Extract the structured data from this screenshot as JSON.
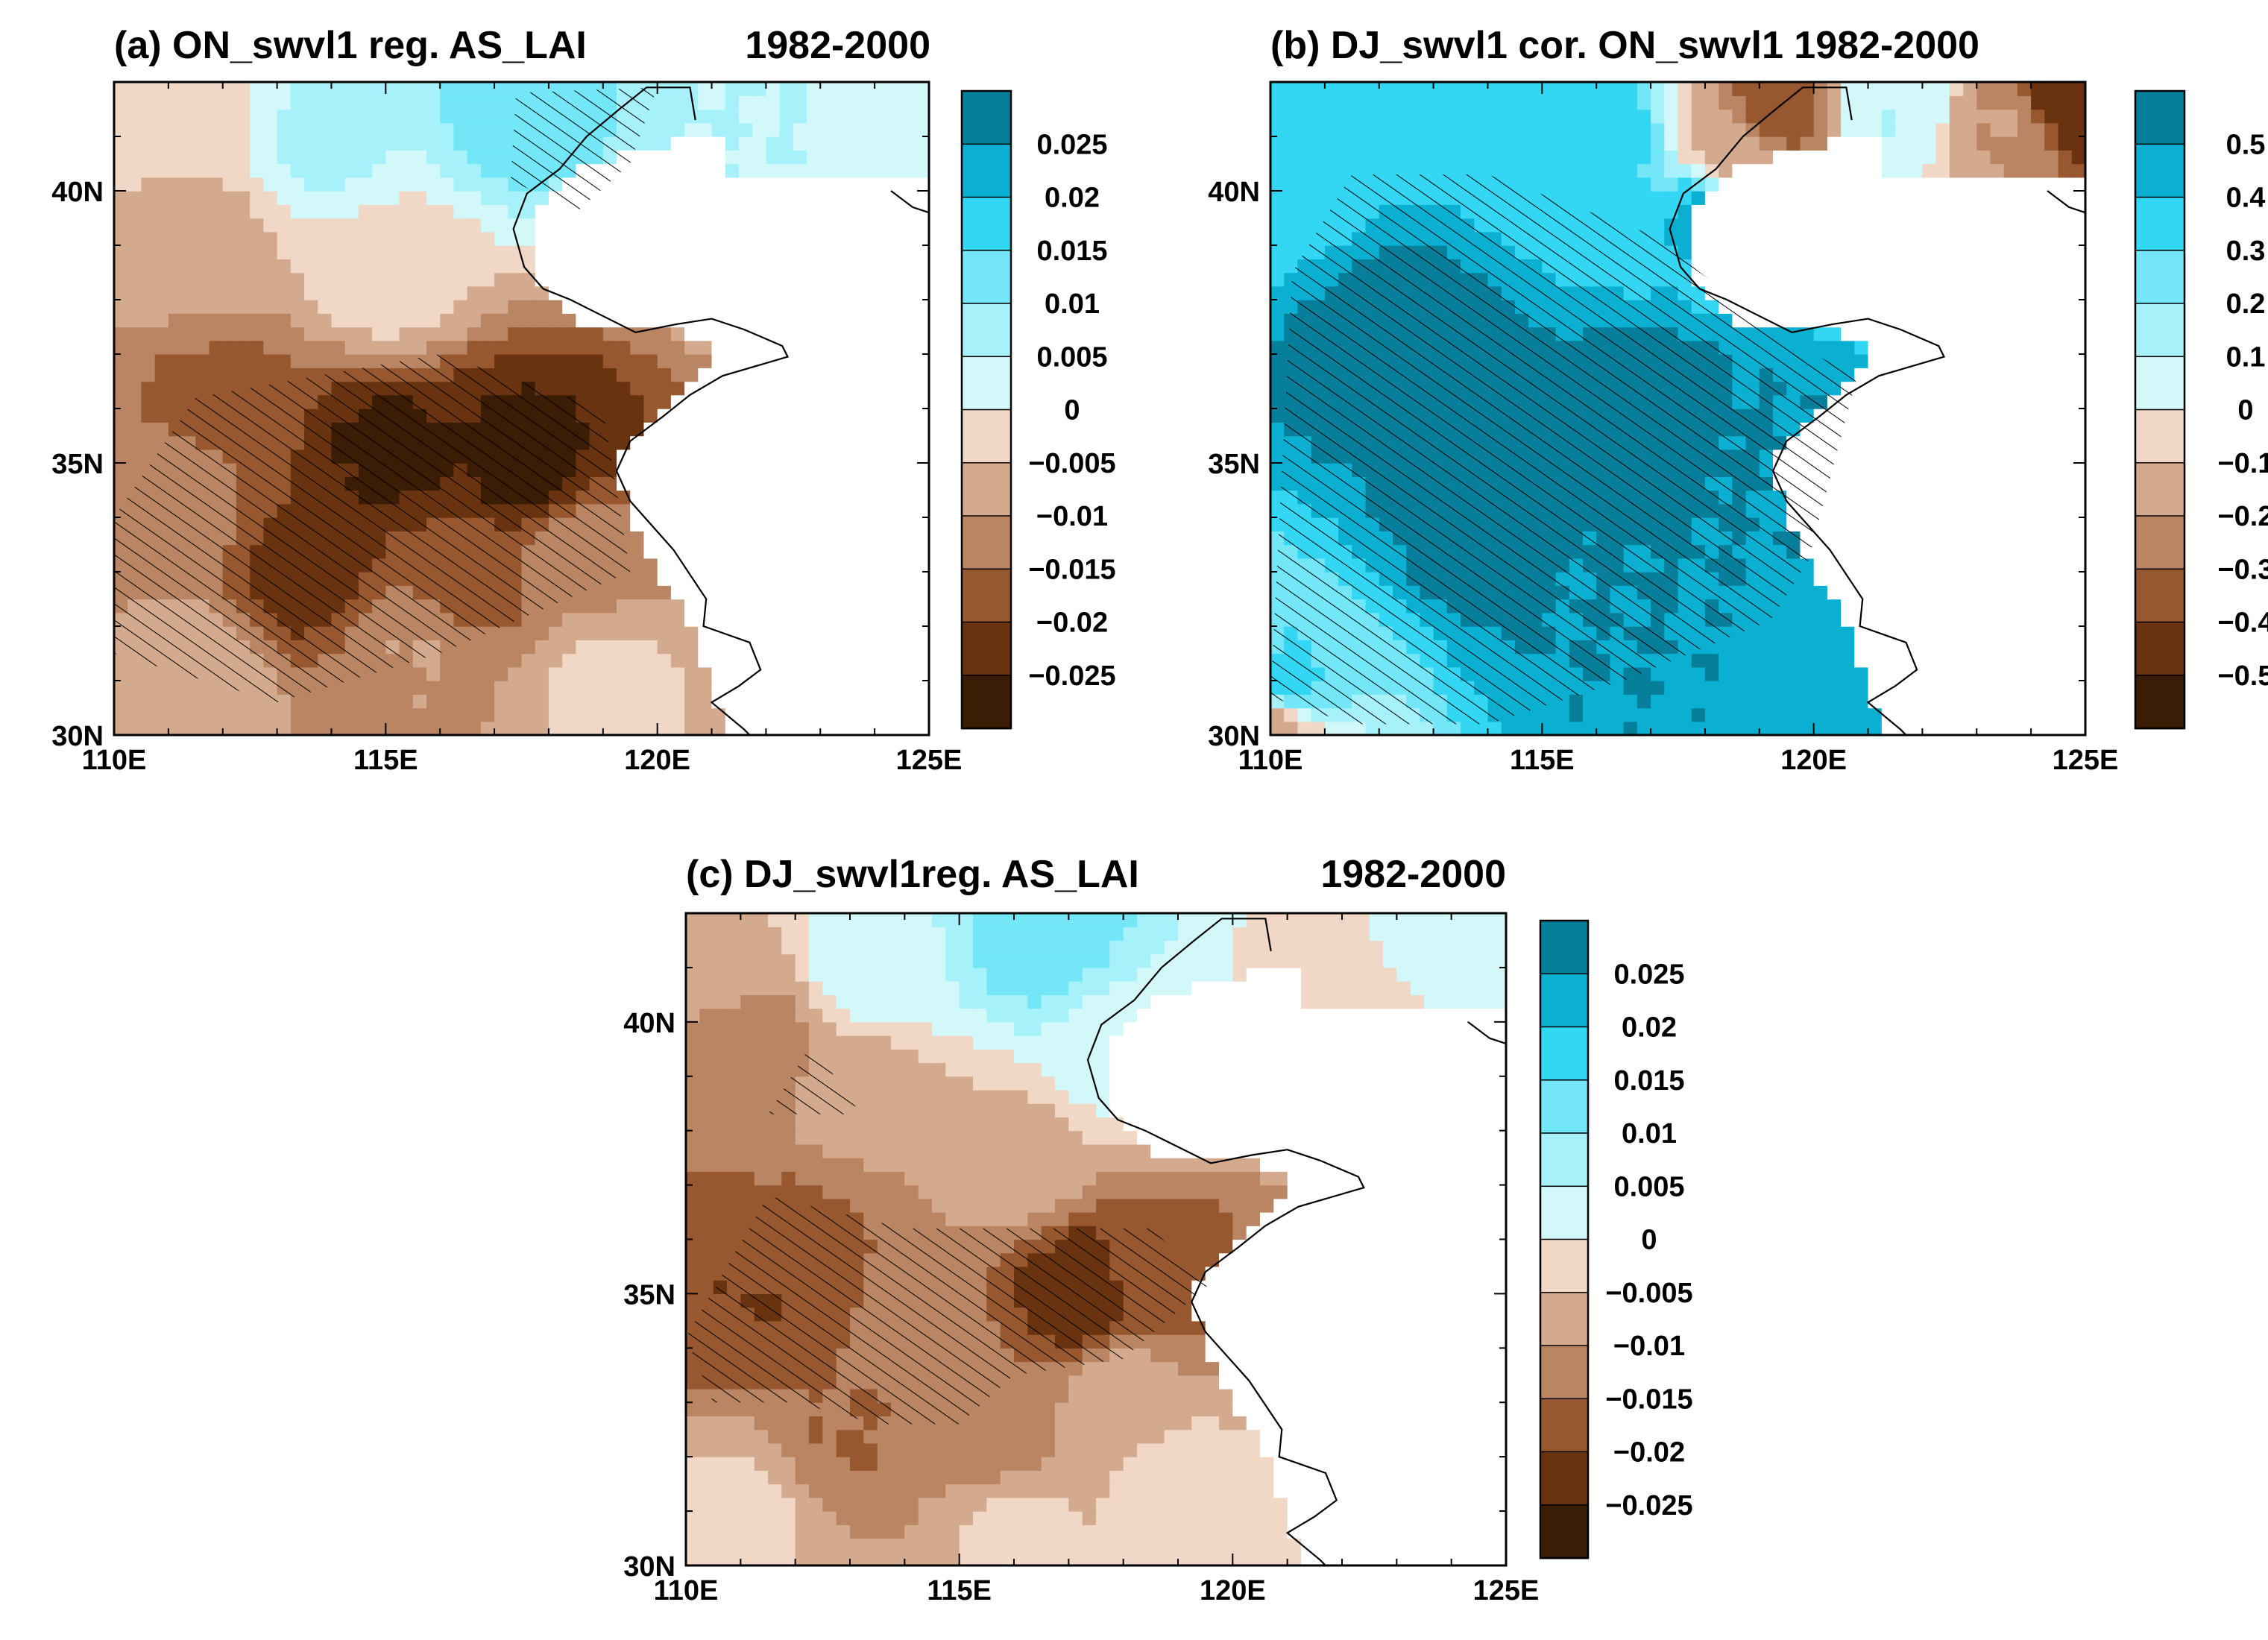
{
  "colors": {
    "brown": [
      "#3b1c05",
      "#6a3310",
      "#97582f",
      "#b98562",
      "#d4aa8f",
      "#f0d7c6"
    ],
    "blue": [
      "#d2f8fa",
      "#a7f2fa",
      "#73e7f8",
      "#33d6f3",
      "#0ab0d2",
      "#077e9a"
    ],
    "land": "#ffffff",
    "coast": "#000000",
    "hatch": "#000000"
  },
  "chart_data": [
    {
      "id": "a",
      "type": "heatmap",
      "title": "(a) ON_swvl1 reg. AS_LAI",
      "period": "1982-2000",
      "xlabel": "",
      "ylabel": "",
      "xlim": [
        110,
        125
      ],
      "ylim": [
        30,
        42
      ],
      "xticks": [
        110,
        115,
        120,
        125
      ],
      "xtick_labels": [
        "110E",
        "115E",
        "120E",
        "125E"
      ],
      "yticks": [
        30,
        35,
        40
      ],
      "ytick_labels": [
        "30N",
        "35N",
        "40N"
      ],
      "colorbar_levels": [
        "0.025",
        "0.02",
        "0.015",
        "0.01",
        "0.005",
        "0",
        "−0.005",
        "−0.01",
        "−0.015",
        "−0.02",
        "−0.025"
      ],
      "field": {
        "gradient": [
          0.0,
          -0.25,
          0.25
        ],
        "anchors": [
          {
            "lon": 117.5,
            "lat": 41.6,
            "val": 0.012
          },
          {
            "lon": 114.0,
            "lat": 41.0,
            "val": 0.006
          },
          {
            "lon": 121.5,
            "lat": 40.8,
            "val": 0.005
          },
          {
            "lon": 111.0,
            "lat": 41.5,
            "val": -0.003
          },
          {
            "lon": 111.5,
            "lat": 39.0,
            "val": -0.007
          },
          {
            "lon": 115.0,
            "lat": 38.5,
            "val": -0.003
          },
          {
            "lon": 112.0,
            "lat": 36.2,
            "val": -0.016
          },
          {
            "lon": 115.0,
            "lat": 35.2,
            "val": -0.026
          },
          {
            "lon": 117.5,
            "lat": 35.0,
            "val": -0.027
          },
          {
            "lon": 113.5,
            "lat": 33.0,
            "val": -0.022
          },
          {
            "lon": 116.5,
            "lat": 33.0,
            "val": -0.018
          },
          {
            "lon": 118.5,
            "lat": 33.2,
            "val": -0.012
          },
          {
            "lon": 111.0,
            "lat": 34.0,
            "val": -0.012
          },
          {
            "lon": 111.5,
            "lat": 31.0,
            "val": -0.006
          },
          {
            "lon": 115.5,
            "lat": 31.5,
            "val": -0.01
          },
          {
            "lon": 119.0,
            "lat": 31.0,
            "val": -0.004
          }
        ],
        "hatch": [
          [
            110,
            34
          ],
          [
            111.5,
            36.2
          ],
          [
            116,
            37
          ],
          [
            119,
            36
          ],
          [
            119.5,
            33
          ],
          [
            116,
            31.5
          ],
          [
            113,
            30.6
          ],
          [
            110,
            31.5
          ]
        ],
        "hatch2": [
          [
            117.3,
            40.2
          ],
          [
            117.4,
            41.8
          ],
          [
            120,
            41.9
          ],
          [
            119.5,
            40.5
          ],
          [
            118.5,
            39.6
          ]
        ]
      }
    },
    {
      "id": "b",
      "type": "heatmap",
      "title": "(b) DJ_swvl1 cor. ON_swvl1 1982-2000",
      "period": "",
      "xlabel": "",
      "ylabel": "",
      "xlim": [
        110,
        125
      ],
      "ylim": [
        30,
        42
      ],
      "xticks": [
        110,
        115,
        120,
        125
      ],
      "xtick_labels": [
        "110E",
        "115E",
        "120E",
        "125E"
      ],
      "yticks": [
        30,
        35,
        40
      ],
      "ytick_labels": [
        "30N",
        "35N",
        "40N"
      ],
      "colorbar_levels": [
        "0.5",
        "0.4",
        "0.3",
        "0.2",
        "0.1",
        "0",
        "−0.1",
        "−0.2",
        "−0.3",
        "−0.4",
        "−0.5"
      ],
      "field": {
        "gradient": [
          0.58,
          -0.012,
          0.0
        ],
        "anchors": [
          {
            "lon": 112.5,
            "lat": 37.0,
            "val": 0.56
          },
          {
            "lon": 114.0,
            "lat": 34.0,
            "val": 0.56
          },
          {
            "lon": 117.0,
            "lat": 36.0,
            "val": 0.55
          },
          {
            "lon": 119.5,
            "lat": 35.5,
            "val": 0.5
          },
          {
            "lon": 116.0,
            "lat": 32.3,
            "val": 0.5
          },
          {
            "lon": 110.4,
            "lat": 31.0,
            "val": 0.32
          },
          {
            "lon": 110.2,
            "lat": 40.8,
            "val": 0.32
          },
          {
            "lon": 116.0,
            "lat": 41.0,
            "val": 0.35
          },
          {
            "lon": 118.0,
            "lat": 39.5,
            "val": 0.42
          },
          {
            "lon": 119.3,
            "lat": 41.5,
            "val": -0.35
          },
          {
            "lon": 118.5,
            "lat": 40.7,
            "val": -0.15
          },
          {
            "lon": 124.7,
            "lat": 41.8,
            "val": -0.5
          },
          {
            "lon": 123.5,
            "lat": 41.2,
            "val": -0.2
          },
          {
            "lon": 121.5,
            "lat": 41.5,
            "val": 0.1
          },
          {
            "lon": 110.1,
            "lat": 30.1,
            "val": -0.15
          }
        ],
        "hatch": [
          [
            110,
            30.7
          ],
          [
            110.4,
            38.5
          ],
          [
            111.5,
            40.3
          ],
          [
            114,
            40.3
          ],
          [
            117,
            39.2
          ],
          [
            119.6,
            37.2
          ],
          [
            120.8,
            36.6
          ],
          [
            119.9,
            33.2
          ],
          [
            119.2,
            32.1
          ],
          [
            116.5,
            31
          ],
          [
            114,
            30.2
          ],
          [
            111.5,
            30.2
          ]
        ],
        "hatch2": []
      }
    },
    {
      "id": "c",
      "type": "heatmap",
      "title": "(c) DJ_swvl1reg. AS_LAI",
      "period": "1982-2000",
      "xlabel": "",
      "ylabel": "",
      "xlim": [
        110,
        125
      ],
      "ylim": [
        30,
        42
      ],
      "xticks": [
        110,
        115,
        120,
        125
      ],
      "xtick_labels": [
        "110E",
        "115E",
        "120E",
        "125E"
      ],
      "yticks": [
        30,
        35,
        40
      ],
      "ytick_labels": [
        "30N",
        "35N",
        "40N"
      ],
      "colorbar_levels": [
        "0.025",
        "0.02",
        "0.015",
        "0.01",
        "0.005",
        "0",
        "−0.005",
        "−0.01",
        "−0.015",
        "−0.02",
        "−0.025"
      ],
      "field": {
        "gradient": [
          0.0,
          -0.18,
          0.18
        ],
        "anchors": [
          {
            "lon": 116.5,
            "lat": 41.6,
            "val": 0.013
          },
          {
            "lon": 113.5,
            "lat": 41.2,
            "val": 0.004
          },
          {
            "lon": 118.0,
            "lat": 39.5,
            "val": 0.003
          },
          {
            "lon": 123.5,
            "lat": 41.5,
            "val": 0.002
          },
          {
            "lon": 122.2,
            "lat": 40.6,
            "val": -0.003
          },
          {
            "lon": 110.5,
            "lat": 41.0,
            "val": -0.006
          },
          {
            "lon": 111.0,
            "lat": 39.6,
            "val": -0.014
          },
          {
            "lon": 113.0,
            "lat": 38.5,
            "val": -0.009
          },
          {
            "lon": 116.0,
            "lat": 37.5,
            "val": -0.006
          },
          {
            "lon": 112.0,
            "lat": 36.0,
            "val": -0.016
          },
          {
            "lon": 111.3,
            "lat": 35.0,
            "val": -0.02
          },
          {
            "lon": 117.3,
            "lat": 35.0,
            "val": -0.024
          },
          {
            "lon": 118.5,
            "lat": 35.2,
            "val": -0.017
          },
          {
            "lon": 114.5,
            "lat": 34.5,
            "val": -0.014
          },
          {
            "lon": 113.0,
            "lat": 32.5,
            "val": -0.015
          },
          {
            "lon": 115.5,
            "lat": 32.3,
            "val": -0.012
          },
          {
            "lon": 118.0,
            "lat": 33.2,
            "val": -0.008
          },
          {
            "lon": 111.0,
            "lat": 31.0,
            "val": -0.004
          },
          {
            "lon": 116.0,
            "lat": 30.6,
            "val": -0.004
          },
          {
            "lon": 119.0,
            "lat": 31.5,
            "val": -0.003
          }
        ],
        "hatch": [
          [
            110,
            34.2
          ],
          [
            111.5,
            36.8
          ],
          [
            114,
            36.2
          ],
          [
            118.5,
            36.2
          ],
          [
            119.6,
            35.2
          ],
          [
            118,
            33.8
          ],
          [
            116,
            33.5
          ],
          [
            115,
            32.6
          ],
          [
            113.5,
            32.6
          ],
          [
            112,
            33
          ],
          [
            110.5,
            33
          ]
        ],
        "hatch2": [
          [
            111.5,
            38.3
          ],
          [
            112.3,
            39.6
          ],
          [
            113.2,
            38.3
          ]
        ]
      }
    }
  ]
}
